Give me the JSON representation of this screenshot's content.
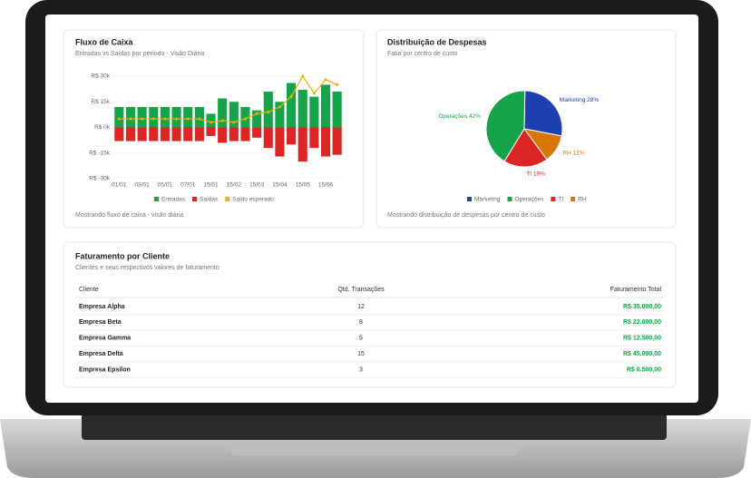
{
  "chart_data": [
    {
      "type": "bar",
      "title": "Fluxo de Caixa",
      "subtitle": "Entradas vs Saídas por período - Visão Diária",
      "footer": "Mostrando fluxo de caixa - visão diária",
      "categories": [
        "01/01",
        null,
        "03/01",
        null,
        "05/01",
        null,
        "07/01",
        null,
        "15/01",
        null,
        "15/02",
        null,
        "15/03",
        null,
        "15/04",
        null,
        "15/05",
        null,
        "15/06",
        null
      ],
      "series": [
        {
          "name": "Entradas",
          "color": "#16a34a",
          "values": [
            12000,
            12000,
            12000,
            12000,
            12000,
            12000,
            12000,
            12000,
            8000,
            17000,
            15000,
            12000,
            10000,
            21000,
            15000,
            26000,
            22000,
            18000,
            25000,
            21000
          ]
        },
        {
          "name": "Saídas",
          "color": "#dc2626",
          "values": [
            -8000,
            -8000,
            -8000,
            -8000,
            -8000,
            -8000,
            -8000,
            -8000,
            -5000,
            -9000,
            -8000,
            -8000,
            -6000,
            -12000,
            -17000,
            -10000,
            -20000,
            -12000,
            -17000,
            -16000
          ]
        },
        {
          "name": "Saldo esperado",
          "color": "#eab308",
          "type": "line",
          "values": [
            5000,
            5000,
            5000,
            5000,
            5000,
            5000,
            5000,
            5000,
            3000,
            4000,
            3000,
            5000,
            8000,
            9000,
            12000,
            18000,
            30000,
            20000,
            28000,
            25000
          ]
        }
      ],
      "ylim": [
        -30000,
        30000
      ],
      "yticks": [
        {
          "value": 30000,
          "label": "R$ 30k"
        },
        {
          "value": 15000,
          "label": "R$ 15k"
        },
        {
          "value": 0,
          "label": "R$ 0k"
        },
        {
          "value": -15000,
          "label": "R$ -15k"
        },
        {
          "value": -30000,
          "label": "R$ -30k"
        }
      ],
      "grid": true,
      "legend": "bottom"
    },
    {
      "type": "pie",
      "title": "Distribuição de Despesas",
      "subtitle": "Fatia por centro de custo",
      "footer": "Mostrando distribuição de despesas por centro de custo",
      "categories": [
        "Marketing",
        "Operações",
        "TI",
        "RH"
      ],
      "values": [
        28,
        42,
        19,
        12
      ],
      "value_labels": [
        "Marketing 28%",
        "Operações 42%",
        "TI 19%",
        "RH 12%"
      ],
      "colors": [
        "#1e40af",
        "#16a34a",
        "#dc2626",
        "#d97706"
      ],
      "legend": "bottom"
    }
  ],
  "table": {
    "title": "Faturamento por Cliente",
    "subtitle": "Clientes e seus respectivos valores de faturamento",
    "columns": [
      "Cliente",
      "Qtd. Transações",
      "Faturamento Total"
    ],
    "rows": [
      [
        "Empresa Alpha",
        "12",
        "R$ 35.000,00"
      ],
      [
        "Empresa Beta",
        "8",
        "R$ 22.000,00"
      ],
      [
        "Empresa Gamma",
        "5",
        "R$ 12.500,00"
      ],
      [
        "Empresa Delta",
        "15",
        "R$ 45.000,00"
      ],
      [
        "Empresa Epsilon",
        "3",
        "R$ 8.500,00"
      ]
    ]
  }
}
